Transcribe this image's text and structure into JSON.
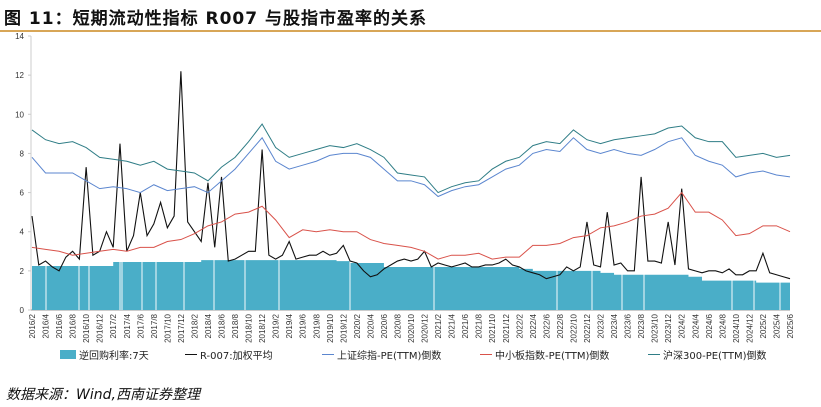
{
  "title": "图 11：短期流动性指标 R007 与股指市盈率的关系",
  "source": "数据来源：Wind,西南证券整理",
  "chart_data": {
    "type": "line",
    "title": "短期流动性指标 R007 与股指市盈率的关系",
    "ylim": [
      0,
      14
    ],
    "yticks": [
      "0",
      "2",
      "4",
      "6",
      "8",
      "10",
      "12",
      "14"
    ],
    "xlim": [
      "2016/2",
      "2025/6"
    ],
    "xticks": [
      "2016/2",
      "2016/4",
      "2016/6",
      "2016/8",
      "2016/10",
      "2016/12",
      "2017/2",
      "2017/4",
      "2017/6",
      "2017/8",
      "2017/10",
      "2017/12",
      "2018/2",
      "2018/4",
      "2018/6",
      "2018/8",
      "2018/10",
      "2018/12",
      "2019/2",
      "2019/4",
      "2019/6",
      "2019/8",
      "2019/10",
      "2019/12",
      "2020/2",
      "2020/4",
      "2020/6",
      "2020/8",
      "2020/10",
      "2020/12",
      "2021/2",
      "2021/4",
      "2021/6",
      "2021/8",
      "2021/10",
      "2021/12",
      "2022/2",
      "2022/4",
      "2022/6",
      "2022/8",
      "2022/10",
      "2022/12",
      "2023/2",
      "2023/4",
      "2023/6",
      "2023/8",
      "2023/10",
      "2023/12",
      "2024/2",
      "2024/4",
      "2024/6",
      "2024/8",
      "2024/10",
      "2024/12",
      "2025/2",
      "2025/4",
      "2025/6"
    ],
    "legend_position": "bottom",
    "series": [
      {
        "name": "逆回购利率:7天",
        "type": "area",
        "color": "#4aaec8",
        "steps": [
          [
            "2016/2",
            2.25
          ],
          [
            "2017/2",
            2.45
          ],
          [
            "2018/3",
            2.55
          ],
          [
            "2019/11",
            2.5
          ],
          [
            "2020/1",
            2.4
          ],
          [
            "2020/6",
            2.2
          ],
          [
            "2022/2",
            2.1
          ],
          [
            "2022/4",
            2.0
          ],
          [
            "2023/2",
            1.9
          ],
          [
            "2023/4",
            1.8
          ],
          [
            "2024/3",
            1.7
          ],
          [
            "2024/5",
            1.5
          ],
          [
            "2025/1",
            1.4
          ]
        ]
      },
      {
        "name": "R-007:加权平均",
        "type": "line",
        "color": "#111111",
        "start": "2016/2",
        "step_months": 1,
        "values": [
          4.8,
          2.3,
          2.5,
          2.2,
          2.0,
          2.7,
          3.0,
          2.6,
          7.3,
          2.8,
          3.0,
          4.0,
          3.2,
          8.5,
          3.0,
          3.8,
          6.0,
          3.8,
          4.4,
          5.5,
          4.2,
          4.8,
          12.2,
          4.5,
          4.0,
          3.5,
          6.5,
          3.2,
          6.8,
          2.5,
          2.6,
          2.8,
          3.0,
          3.0,
          8.2,
          2.8,
          2.6,
          2.8,
          3.5,
          2.6,
          2.7,
          2.8,
          2.8,
          3.0,
          2.8,
          2.9,
          3.3,
          2.5,
          2.4,
          2.0,
          1.7,
          1.8,
          2.1,
          2.3,
          2.5,
          2.6,
          2.5,
          2.6,
          3.0,
          2.2,
          2.4,
          2.3,
          2.2,
          2.3,
          2.4,
          2.2,
          2.2,
          2.3,
          2.3,
          2.4,
          2.6,
          2.3,
          2.2,
          2.0,
          1.9,
          1.8,
          1.6,
          1.7,
          1.8,
          2.2,
          2.0,
          2.2,
          4.5,
          2.3,
          2.2,
          5.0,
          2.3,
          2.4,
          2.0,
          2.0,
          6.8,
          2.5,
          2.5,
          2.4,
          4.5,
          2.3,
          6.2,
          2.1,
          2.0,
          1.9,
          2.0,
          2.0,
          1.9,
          2.1,
          1.8,
          1.8,
          2.0,
          2.0,
          2.9,
          1.9,
          1.8,
          1.7,
          1.6
        ]
      },
      {
        "name": "上证综指-PE(TTM)倒数",
        "type": "line",
        "color": "#5b86cf",
        "start": "2016/2",
        "step_months": 2,
        "values": [
          7.8,
          7.0,
          7.0,
          7.0,
          6.6,
          6.2,
          6.3,
          6.2,
          6.0,
          6.4,
          6.1,
          6.2,
          6.3,
          6.0,
          6.6,
          7.2,
          8.0,
          8.8,
          7.6,
          7.2,
          7.4,
          7.6,
          7.9,
          8.0,
          8.0,
          7.8,
          7.2,
          6.6,
          6.6,
          6.4,
          5.8,
          6.1,
          6.3,
          6.4,
          6.8,
          7.2,
          7.4,
          8.0,
          8.2,
          8.1,
          8.8,
          8.2,
          8.0,
          8.2,
          8.0,
          7.9,
          8.2,
          8.6,
          8.8,
          7.9,
          7.6,
          7.4,
          6.8,
          7.0,
          7.1,
          6.9,
          6.8
        ]
      },
      {
        "name": "中小板指数-PE(TTM)倒数",
        "type": "line",
        "color": "#d9524a",
        "start": "2016/2",
        "step_months": 2,
        "values": [
          3.2,
          3.1,
          3.0,
          2.8,
          2.9,
          3.0,
          3.1,
          3.0,
          3.2,
          3.2,
          3.5,
          3.6,
          3.9,
          4.3,
          4.5,
          4.9,
          5.0,
          5.3,
          4.6,
          3.7,
          4.1,
          4.0,
          4.1,
          4.0,
          4.0,
          3.6,
          3.4,
          3.3,
          3.2,
          3.0,
          2.6,
          2.8,
          2.8,
          2.9,
          2.6,
          2.7,
          2.7,
          3.3,
          3.3,
          3.4,
          3.7,
          3.8,
          4.2,
          4.3,
          4.5,
          4.8,
          4.9,
          5.2,
          6.0,
          5.0,
          5.0,
          4.6,
          3.8,
          3.9,
          4.3,
          4.3,
          4.0
        ]
      },
      {
        "name": "沪深300-PE(TTM)倒数",
        "type": "line",
        "color": "#2f7d86",
        "start": "2016/2",
        "step_months": 2,
        "values": [
          9.2,
          8.7,
          8.5,
          8.6,
          8.3,
          7.8,
          7.7,
          7.6,
          7.4,
          7.6,
          7.2,
          7.1,
          7.0,
          6.6,
          7.3,
          7.8,
          8.6,
          9.5,
          8.3,
          7.8,
          8.0,
          8.2,
          8.4,
          8.3,
          8.5,
          8.2,
          7.8,
          7.0,
          6.9,
          6.8,
          6.0,
          6.3,
          6.5,
          6.6,
          7.2,
          7.6,
          7.8,
          8.4,
          8.6,
          8.5,
          9.2,
          8.7,
          8.5,
          8.7,
          8.8,
          8.9,
          9.0,
          9.3,
          9.4,
          8.8,
          8.6,
          8.6,
          7.8,
          7.9,
          8.0,
          7.8,
          7.9
        ]
      }
    ]
  }
}
